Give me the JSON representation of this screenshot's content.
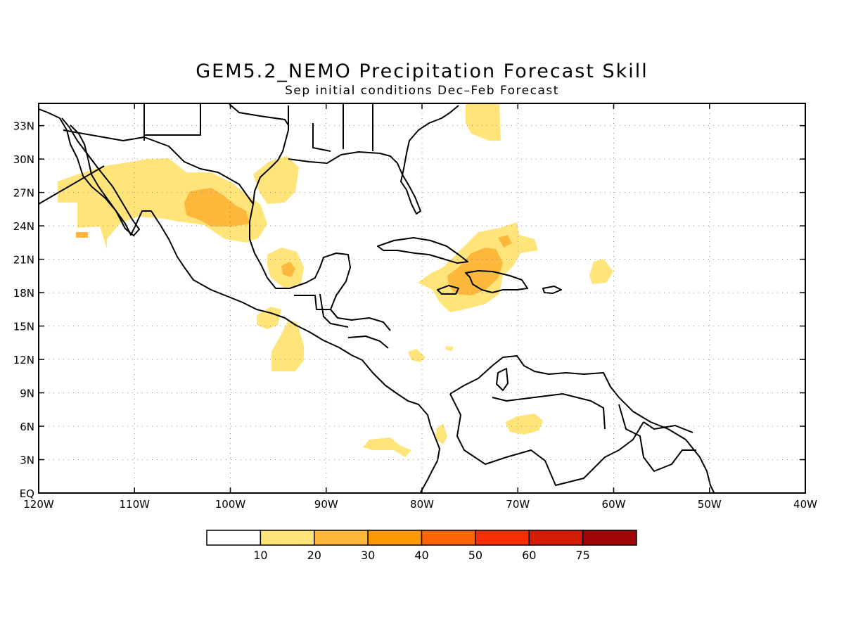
{
  "title": "GEM5.2_NEMO Precipitation Forecast Skill",
  "subtitle": "Sep initial conditions  Dec–Feb Forecast",
  "map": {
    "lon_range": [
      -120,
      -40
    ],
    "lat_range": [
      0,
      35
    ],
    "lat_ticks": [
      {
        "v": 33,
        "label": "33N"
      },
      {
        "v": 30,
        "label": "30N"
      },
      {
        "v": 27,
        "label": "27N"
      },
      {
        "v": 24,
        "label": "24N"
      },
      {
        "v": 21,
        "label": "21N"
      },
      {
        "v": 18,
        "label": "18N"
      },
      {
        "v": 15,
        "label": "15N"
      },
      {
        "v": 12,
        "label": "12N"
      },
      {
        "v": 9,
        "label": "9N"
      },
      {
        "v": 6,
        "label": "6N"
      },
      {
        "v": 3,
        "label": "3N"
      },
      {
        "v": 0,
        "label": "EQ"
      }
    ],
    "lon_ticks": [
      {
        "v": -120,
        "label": "120W"
      },
      {
        "v": -110,
        "label": "110W"
      },
      {
        "v": -100,
        "label": "100W"
      },
      {
        "v": -90,
        "label": "90W"
      },
      {
        "v": -80,
        "label": "80W"
      },
      {
        "v": -70,
        "label": "70W"
      },
      {
        "v": -60,
        "label": "60W"
      },
      {
        "v": -50,
        "label": "50W"
      },
      {
        "v": -40,
        "label": "40W"
      }
    ],
    "grid": true
  },
  "colorbar": {
    "labels": [
      "10",
      "20",
      "30",
      "40",
      "50",
      "60",
      "75"
    ],
    "colors": [
      "#ffffff",
      "#ffe47a",
      "#fdb83c",
      "#fc9b04",
      "#fb6404",
      "#f72f04",
      "#d41c04",
      "#a00404"
    ]
  }
}
